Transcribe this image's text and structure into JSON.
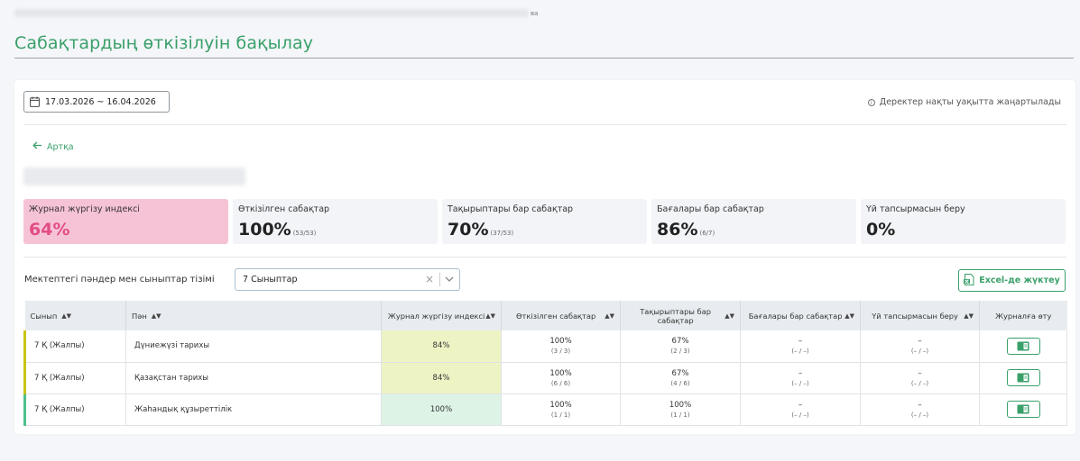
{
  "breadcrumb": {
    "tail": "ва"
  },
  "page": {
    "title": "Сабақтардың өткізілуін бақылау"
  },
  "filters": {
    "date_range": "17.03.2026 ~ 16.04.2026",
    "realtime_note": "Деректер нақты уақытта жаңартылады"
  },
  "nav": {
    "back_label": "Артқа"
  },
  "stats": [
    {
      "label": "Журнал жүргізу индексі",
      "value": "64%",
      "sub": ""
    },
    {
      "label": "Өткізілген сабақтар",
      "value": "100%",
      "sub": "(53/53)"
    },
    {
      "label": "Тақырыптары бар сабақтар",
      "value": "70%",
      "sub": "(37/53)"
    },
    {
      "label": "Бағалары бар сабақтар",
      "value": "86%",
      "sub": "(6/7)"
    },
    {
      "label": "Үй тапсырмасын беру",
      "value": "0%",
      "sub": ""
    }
  ],
  "list": {
    "label": "Мектептегі пәндер мен сыныптар тізімі",
    "selected_class": "7 Сыныптар",
    "clear_glyph": "×",
    "export_label": "Excel-де жүктеу"
  },
  "table": {
    "headers": [
      "Сынып",
      "Пән",
      "Журнал жүргізу индексі",
      "Өткізілген сабақтар",
      "Тақырыптары бар сабақтар",
      "Бағалары бар сабақтар",
      "Үй тапсырмасын беру",
      "Журналға өту"
    ],
    "rows": [
      {
        "class": "7 Қ (Жалпы)",
        "subject": "Дүниежүзі тарихы",
        "index": "84%",
        "held": "100%",
        "held_sub": "(3 / 3)",
        "topics": "67%",
        "topics_sub": "(2 / 3)",
        "grades": "–",
        "grades_sub": "(– / –)",
        "homework": "–",
        "homework_sub": "(– / –)",
        "bar_color": "#c9c316",
        "index_bg": "#eef3c4"
      },
      {
        "class": "7 Қ (Жалпы)",
        "subject": "Қазақстан тарихы",
        "index": "84%",
        "held": "100%",
        "held_sub": "(6 / 6)",
        "topics": "67%",
        "topics_sub": "(4 / 6)",
        "grades": "–",
        "grades_sub": "(– / –)",
        "homework": "–",
        "homework_sub": "(– / –)",
        "bar_color": "#c9c316",
        "index_bg": "#eef3c4"
      },
      {
        "class": "7 Қ (Жалпы)",
        "subject": "Жаһандық құзыреттілік",
        "index": "100%",
        "held": "100%",
        "held_sub": "(1 / 1)",
        "topics": "100%",
        "topics_sub": "(1 / 1)",
        "grades": "–",
        "grades_sub": "(– / –)",
        "homework": "–",
        "homework_sub": "(– / –)",
        "bar_color": "#4cc08a",
        "index_bg": "#dcf3e6"
      }
    ]
  },
  "colors": {
    "accent": "#3aa06a",
    "pink": "#f6c3d6",
    "pink_value": "#e24d85"
  },
  "icons": [
    "calendar-icon",
    "info-icon",
    "arrow-left-icon",
    "chevron-down-icon",
    "excel-icon",
    "sort-icon",
    "journal-book-icon"
  ]
}
